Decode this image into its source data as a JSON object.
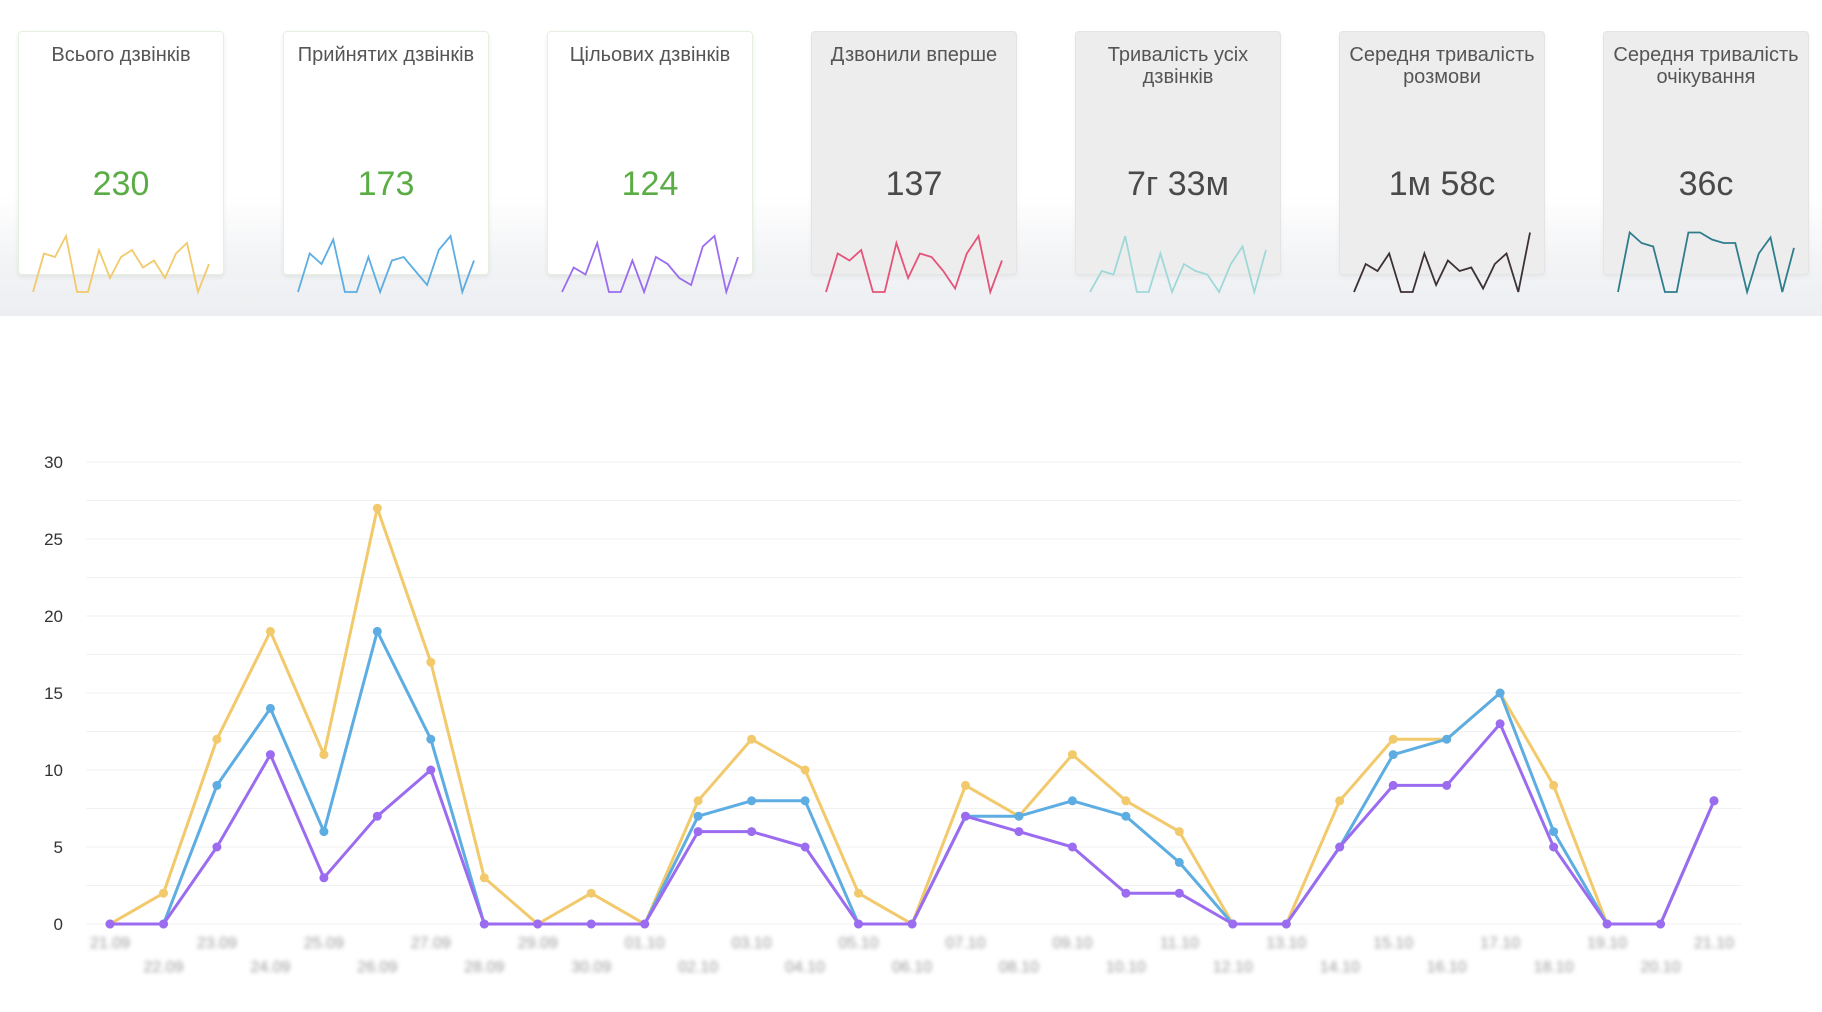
{
  "cards": [
    {
      "title": "Всього дзвінків",
      "value": "230",
      "style": "white",
      "value_color": "green",
      "color": "#f2c96b",
      "spark": [
        0,
        0.55,
        0.5,
        0.8,
        0,
        0,
        0.6,
        0.2,
        0.5,
        0.6,
        0.35,
        0.45,
        0.2,
        0.55,
        0.7,
        0,
        0.4
      ]
    },
    {
      "title": "Прийнятих дзвінків",
      "value": "173",
      "style": "white",
      "value_color": "green",
      "color": "#5dade2",
      "spark": [
        0,
        0.55,
        0.4,
        0.75,
        0,
        0,
        0.5,
        0,
        0.45,
        0.5,
        0.3,
        0.1,
        0.6,
        0.8,
        0,
        0.45
      ]
    },
    {
      "title": "Цільових дзвінків",
      "value": "124",
      "style": "white",
      "value_color": "green",
      "color": "#9b6cf0",
      "spark": [
        0,
        0.35,
        0.25,
        0.7,
        0,
        0,
        0.45,
        0,
        0.5,
        0.4,
        0.2,
        0.1,
        0.65,
        0.8,
        0,
        0.5
      ]
    },
    {
      "title": "Дзвонили вперше",
      "value": "137",
      "style": "grey",
      "value_color": "dark",
      "color": "#e5527a",
      "spark": [
        0,
        0.55,
        0.45,
        0.6,
        0,
        0,
        0.7,
        0.2,
        0.55,
        0.5,
        0.3,
        0.05,
        0.55,
        0.8,
        0,
        0.45
      ]
    },
    {
      "title": "Тривалість усіх дзвінків",
      "value": "7г 33м",
      "style": "grey",
      "value_color": "dark",
      "color": "#9fd8d8",
      "spark": [
        0,
        0.3,
        0.25,
        0.8,
        0,
        0,
        0.55,
        0,
        0.4,
        0.3,
        0.25,
        0,
        0.4,
        0.65,
        0,
        0.6
      ]
    },
    {
      "title": "Середня тривалість розмови",
      "value": "1м 58с",
      "style": "grey",
      "value_color": "dark",
      "color": "#3c3133",
      "spark": [
        0,
        0.4,
        0.3,
        0.55,
        0,
        0,
        0.55,
        0.1,
        0.45,
        0.3,
        0.35,
        0.05,
        0.4,
        0.55,
        0,
        0.85
      ]
    },
    {
      "title": "Середня тривалість очікування",
      "value": "36с",
      "style": "grey",
      "value_color": "dark",
      "color": "#2e7d8c",
      "spark": [
        0,
        0.85,
        0.7,
        0.65,
        0,
        0,
        0.85,
        0.85,
        0.75,
        0.7,
        0.7,
        0,
        0.55,
        0.78,
        0,
        0.63
      ]
    }
  ],
  "chart_data": {
    "type": "line",
    "categories": [
      "21.09",
      "22.09",
      "23.09",
      "24.09",
      "25.09",
      "26.09",
      "27.09",
      "28.09",
      "29.09",
      "30.09",
      "01.10",
      "02.10",
      "03.10",
      "04.10",
      "05.10",
      "06.10",
      "07.10",
      "08.10",
      "09.10",
      "10.10",
      "11.10",
      "12.10",
      "13.10",
      "14.10",
      "15.10",
      "16.10",
      "17.10",
      "18.10",
      "19.10",
      "20.10",
      "21.10"
    ],
    "ylim": [
      0,
      30
    ],
    "yticks": [
      0,
      5,
      10,
      15,
      20,
      25,
      30
    ],
    "grid": true,
    "series": [
      {
        "color": "#f2c96b",
        "values": [
          0,
          2,
          12,
          19,
          11,
          27,
          17,
          3,
          0,
          2,
          0,
          8,
          12,
          10,
          2,
          0,
          9,
          7,
          11,
          8,
          6,
          0,
          0,
          8,
          12,
          12,
          15,
          9,
          0,
          0,
          8
        ]
      },
      {
        "color": "#5dade2",
        "values": [
          0,
          0,
          9,
          14,
          6,
          19,
          12,
          0,
          0,
          0,
          0,
          7,
          8,
          8,
          0,
          0,
          7,
          7,
          8,
          7,
          4,
          0,
          0,
          5,
          11,
          12,
          15,
          6,
          0,
          0,
          8
        ]
      },
      {
        "color": "#9b6cf0",
        "values": [
          0,
          0,
          5,
          11,
          3,
          7,
          10,
          0,
          0,
          0,
          0,
          6,
          6,
          5,
          0,
          0,
          7,
          6,
          5,
          2,
          2,
          0,
          0,
          5,
          9,
          9,
          13,
          5,
          0,
          0,
          8
        ]
      }
    ]
  }
}
